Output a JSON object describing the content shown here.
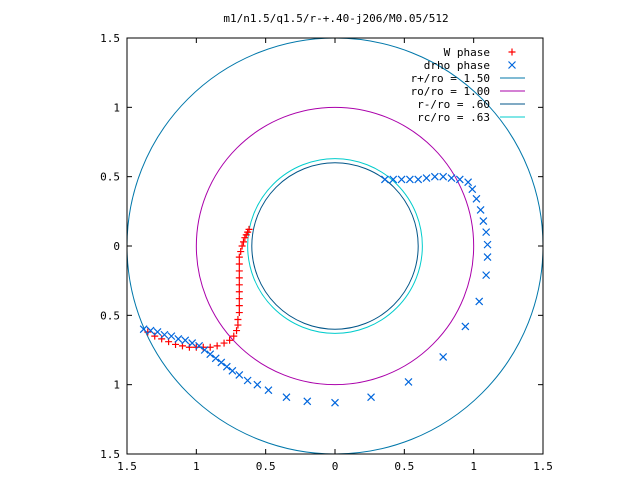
{
  "chart_data": {
    "type": "scatter",
    "title": "m1/n1.5/q1.5/r-+.40-j206/M0.05/512",
    "xlabel": "",
    "ylabel": "",
    "xlim": [
      -1.5,
      1.5
    ],
    "ylim": [
      -1.5,
      1.5
    ],
    "x_ticks": [
      -1.5,
      -1,
      -0.5,
      0,
      0.5,
      1,
      1.5
    ],
    "y_ticks": [
      -1.5,
      -1,
      -0.5,
      0,
      0.5,
      1,
      1.5
    ],
    "x_tick_labels": [
      "1.5",
      "1",
      "0.5",
      "0",
      "0.5",
      "1",
      "1.5"
    ],
    "y_tick_labels": [
      "1.5",
      "1",
      "0.5",
      "0",
      "0.5",
      "1",
      "1.5"
    ],
    "grid": false,
    "legend_position": "top-right",
    "series": [
      {
        "name": "W phase",
        "marker": "plus",
        "color": "#ff0000",
        "points": [
          [
            -0.62,
            0.12
          ],
          [
            -0.63,
            0.1
          ],
          [
            -0.64,
            0.08
          ],
          [
            -0.65,
            0.06
          ],
          [
            -0.66,
            0.03
          ],
          [
            -0.67,
            0.0
          ],
          [
            -0.68,
            -0.04
          ],
          [
            -0.69,
            -0.08
          ],
          [
            -0.69,
            -0.13
          ],
          [
            -0.69,
            -0.18
          ],
          [
            -0.69,
            -0.23
          ],
          [
            -0.69,
            -0.28
          ],
          [
            -0.69,
            -0.33
          ],
          [
            -0.69,
            -0.38
          ],
          [
            -0.69,
            -0.43
          ],
          [
            -0.69,
            -0.48
          ],
          [
            -0.7,
            -0.53
          ],
          [
            -0.7,
            -0.57
          ],
          [
            -0.71,
            -0.61
          ],
          [
            -0.73,
            -0.65
          ],
          [
            -0.76,
            -0.68
          ],
          [
            -0.8,
            -0.7
          ],
          [
            -0.85,
            -0.72
          ],
          [
            -0.9,
            -0.73
          ],
          [
            -0.95,
            -0.73
          ],
          [
            -1.0,
            -0.73
          ],
          [
            -1.05,
            -0.73
          ],
          [
            -1.1,
            -0.72
          ],
          [
            -1.15,
            -0.71
          ],
          [
            -1.2,
            -0.69
          ],
          [
            -1.25,
            -0.67
          ],
          [
            -1.3,
            -0.65
          ],
          [
            -1.35,
            -0.62
          ]
        ]
      },
      {
        "name": "drho phase",
        "marker": "cross",
        "color": "#0066dd",
        "points": [
          [
            -1.38,
            -0.6
          ],
          [
            -1.33,
            -0.61
          ],
          [
            -1.28,
            -0.62
          ],
          [
            -1.23,
            -0.64
          ],
          [
            -1.18,
            -0.65
          ],
          [
            -1.13,
            -0.67
          ],
          [
            -1.08,
            -0.68
          ],
          [
            -1.03,
            -0.7
          ],
          [
            -0.98,
            -0.72
          ],
          [
            -0.94,
            -0.75
          ],
          [
            -0.9,
            -0.78
          ],
          [
            -0.86,
            -0.81
          ],
          [
            -0.82,
            -0.84
          ],
          [
            -0.78,
            -0.87
          ],
          [
            -0.74,
            -0.9
          ],
          [
            -0.69,
            -0.93
          ],
          [
            -0.63,
            -0.97
          ],
          [
            -0.56,
            -1.0
          ],
          [
            -0.48,
            -1.04
          ],
          [
            -0.35,
            -1.09
          ],
          [
            -0.2,
            -1.12
          ],
          [
            0.0,
            -1.13
          ],
          [
            0.26,
            -1.09
          ],
          [
            0.53,
            -0.98
          ],
          [
            0.78,
            -0.8
          ],
          [
            0.94,
            -0.58
          ],
          [
            1.04,
            -0.4
          ],
          [
            1.09,
            -0.21
          ],
          [
            1.1,
            -0.08
          ],
          [
            1.1,
            0.01
          ],
          [
            1.09,
            0.1
          ],
          [
            1.07,
            0.18
          ],
          [
            1.05,
            0.26
          ],
          [
            1.02,
            0.34
          ],
          [
            0.99,
            0.41
          ],
          [
            0.96,
            0.46
          ],
          [
            0.9,
            0.48
          ],
          [
            0.84,
            0.49
          ],
          [
            0.78,
            0.5
          ],
          [
            0.72,
            0.5
          ],
          [
            0.66,
            0.49
          ],
          [
            0.6,
            0.48
          ],
          [
            0.54,
            0.48
          ],
          [
            0.48,
            0.48
          ],
          [
            0.42,
            0.48
          ],
          [
            0.36,
            0.48
          ]
        ]
      },
      {
        "name": "r+/ro = 1.50",
        "type": "circle",
        "r": 1.5,
        "color": "#0077aa"
      },
      {
        "name": "ro/ro = 1.00",
        "type": "circle",
        "r": 1.0,
        "color": "#aa00aa"
      },
      {
        "name": "r-/ro = .60",
        "type": "circle",
        "r": 0.6,
        "color": "#005588"
      },
      {
        "name": "rc/ro = .63",
        "type": "circle",
        "r": 0.63,
        "color": "#00cccc"
      }
    ]
  }
}
